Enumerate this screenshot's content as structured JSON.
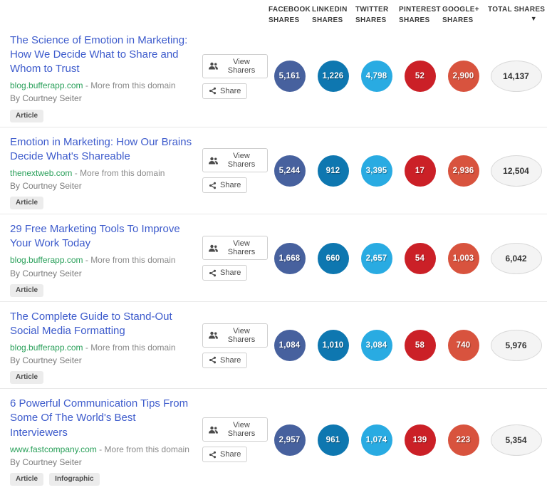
{
  "columns": [
    {
      "key": "facebook",
      "line1": "FACEBOOK",
      "line2": "SHARES"
    },
    {
      "key": "linkedin",
      "line1": "LINKEDIN",
      "line2": "SHARES"
    },
    {
      "key": "twitter",
      "line1": "TWITTER",
      "line2": "SHARES"
    },
    {
      "key": "pinterest",
      "line1": "PINTEREST",
      "line2": "SHARES"
    },
    {
      "key": "googleplus",
      "line1": "GOOGLE+",
      "line2": "SHARES"
    },
    {
      "key": "total",
      "label": "TOTAL SHARES",
      "sort_indicator": "▼"
    }
  ],
  "row_actions": {
    "view_sharers_label": "View Sharers",
    "view_sharers_icon": "users-icon",
    "share_label": "Share",
    "share_icon": "share-nodes-icon"
  },
  "articles": [
    {
      "title": "The Science of Emotion in Marketing: How We Decide What to Share and Whom to Trust",
      "domain": "blog.bufferapp.com",
      "separator": " - ",
      "more_label": "More from this domain",
      "author": "By Courtney Seiter",
      "tags": [
        "Article"
      ],
      "shares": {
        "facebook": "5,161",
        "linkedin": "1,226",
        "twitter": "4,798",
        "pinterest": "52",
        "googleplus": "2,900",
        "total": "14,137"
      }
    },
    {
      "title": "Emotion in Marketing: How Our Brains Decide What's Shareable",
      "domain": "thenextweb.com",
      "separator": " - ",
      "more_label": "More from this domain",
      "author": "By Courtney Seiter",
      "tags": [
        "Article"
      ],
      "shares": {
        "facebook": "5,244",
        "linkedin": "912",
        "twitter": "3,395",
        "pinterest": "17",
        "googleplus": "2,936",
        "total": "12,504"
      }
    },
    {
      "title": "29 Free Marketing Tools To Improve Your Work Today",
      "domain": "blog.bufferapp.com",
      "separator": " - ",
      "more_label": "More from this domain",
      "author": "By Courtney Seiter",
      "tags": [
        "Article"
      ],
      "shares": {
        "facebook": "1,668",
        "linkedin": "660",
        "twitter": "2,657",
        "pinterest": "54",
        "googleplus": "1,003",
        "total": "6,042"
      }
    },
    {
      "title": "The Complete Guide to Stand-Out Social Media Formatting",
      "domain": "blog.bufferapp.com",
      "separator": " - ",
      "more_label": "More from this domain",
      "author": "By Courtney Seiter",
      "tags": [
        "Article"
      ],
      "shares": {
        "facebook": "1,084",
        "linkedin": "1,010",
        "twitter": "3,084",
        "pinterest": "58",
        "googleplus": "740",
        "total": "5,976"
      }
    },
    {
      "title": "6 Powerful Communication Tips From Some Of The World's Best Interviewers",
      "domain": "www.fastcompany.com",
      "separator": " - ",
      "more_label": "More from this domain",
      "author": "By Courtney Seiter",
      "tags": [
        "Article",
        "Infographic"
      ],
      "shares": {
        "facebook": "2,957",
        "linkedin": "961",
        "twitter": "1,074",
        "pinterest": "139",
        "googleplus": "223",
        "total": "5,354"
      }
    }
  ],
  "colors": {
    "facebook": "#47619e",
    "linkedin": "#0e77b0",
    "twitter": "#29abe2",
    "pinterest": "#cb2027",
    "googleplus": "#d8533e",
    "total_bg": "#f4f4f4",
    "total_border": "#d9d9d9",
    "title_link": "#3d5bcc",
    "domain_link": "#2aa05a"
  }
}
